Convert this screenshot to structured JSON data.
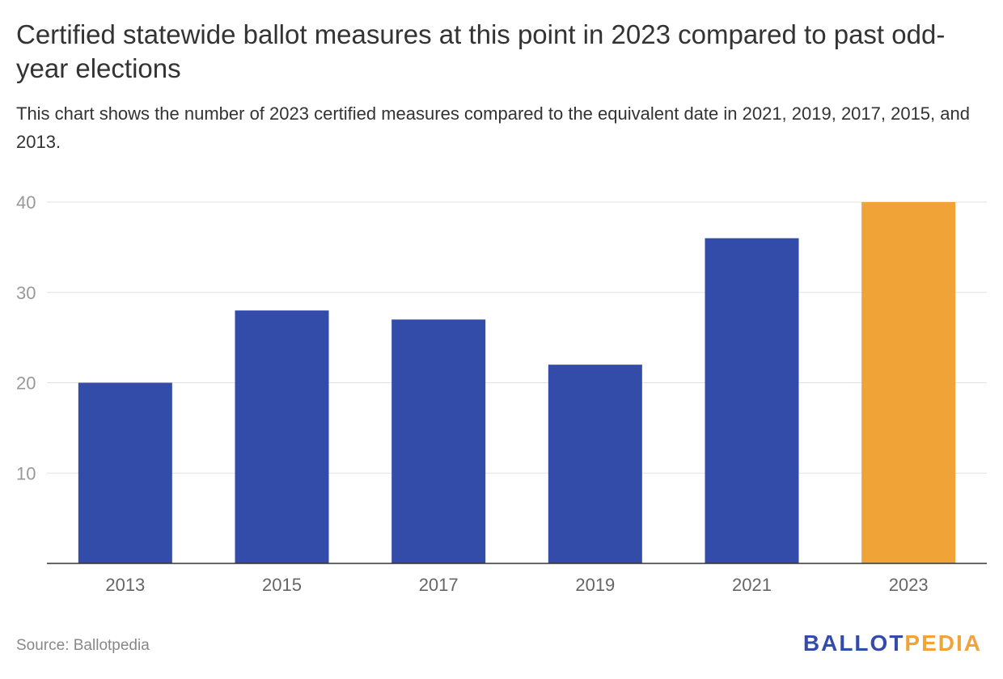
{
  "header": {
    "title": "Certified statewide ballot measures at this point in 2023 compared to past odd-year elections",
    "subtitle": "This chart shows the number of 2023 certified measures compared to the equivalent date in 2021, 2019, 2017, 2015, and 2013."
  },
  "footer": {
    "source": "Source: Ballotpedia",
    "logo_part1": "BALLOT",
    "logo_part2": "PEDIA"
  },
  "colors": {
    "bar": "#334BA9",
    "highlight": "#F0A438",
    "logo_blue": "#334BA9",
    "logo_orange": "#F0A438",
    "grid": "#e2e2e2",
    "axis": "#333333",
    "tick_label": "#999999",
    "category_label": "#666666"
  },
  "chart_data": {
    "type": "bar",
    "categories": [
      "2013",
      "2015",
      "2017",
      "2019",
      "2021",
      "2023"
    ],
    "values": [
      20,
      28,
      27,
      22,
      36,
      40
    ],
    "highlight_category": "2023",
    "title": "Certified statewide ballot measures at this point in 2023 compared to past odd-year elections",
    "xlabel": "",
    "ylabel": "",
    "ylim": [
      0,
      40
    ],
    "yticks": [
      10,
      20,
      30,
      40
    ],
    "grid": true,
    "legend": "none"
  }
}
